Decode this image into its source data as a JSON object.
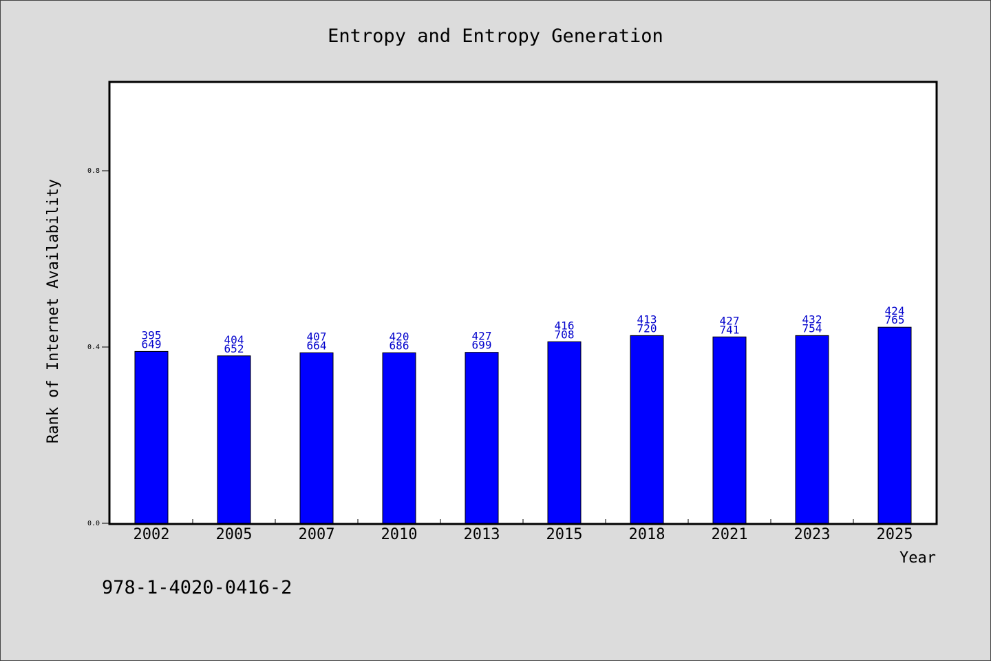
{
  "chart_data": {
    "type": "bar",
    "title": "Entropy and Entropy Generation",
    "xlabel": "Year",
    "ylabel": "Rank of Internet Availability",
    "categories": [
      "2002",
      "2005",
      "2007",
      "2010",
      "2013",
      "2015",
      "2018",
      "2021",
      "2023",
      "2025"
    ],
    "values": [
      0.39,
      0.38,
      0.387,
      0.387,
      0.388,
      0.412,
      0.426,
      0.423,
      0.426,
      0.445
    ],
    "data_labels": [
      [
        "395",
        "649"
      ],
      [
        "404",
        "652"
      ],
      [
        "407",
        "664"
      ],
      [
        "420",
        "686"
      ],
      [
        "427",
        "699"
      ],
      [
        "416",
        "708"
      ],
      [
        "413",
        "720"
      ],
      [
        "427",
        "741"
      ],
      [
        "432",
        "754"
      ],
      [
        "424",
        "765"
      ]
    ],
    "yticks": [
      "0.0",
      "0.4",
      "0.8"
    ],
    "ylim": [
      0,
      1.0
    ],
    "bar_color": "#0000ff",
    "label_color": "#0000cc",
    "grid": false,
    "legend": "none"
  },
  "footnote": "978-1-4020-0416-2"
}
